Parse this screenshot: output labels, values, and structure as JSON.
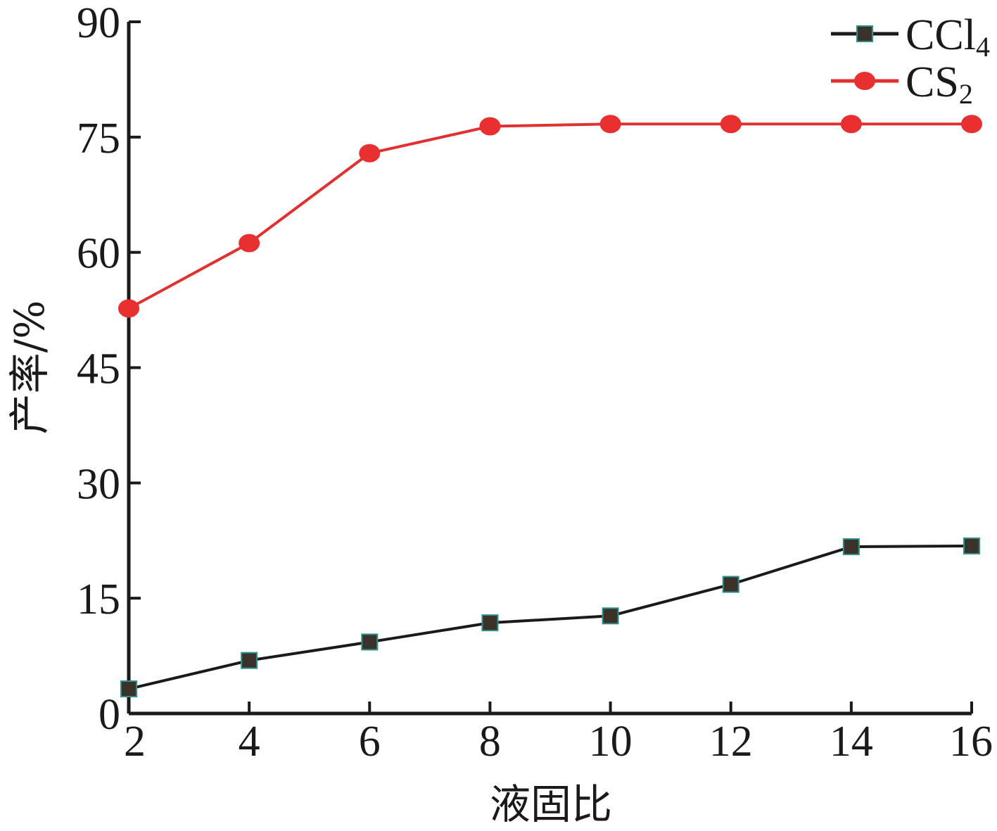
{
  "chart_data": {
    "type": "line",
    "xlabel": "液固比",
    "ylabel": "产率/%",
    "xlim": [
      2,
      16
    ],
    "ylim": [
      0,
      90
    ],
    "x": [
      2,
      4,
      6,
      8,
      10,
      12,
      14,
      16
    ],
    "xticks": [
      "2",
      "4",
      "6",
      "8",
      "10",
      "12",
      "14",
      "16"
    ],
    "yticks": [
      "0",
      "15",
      "30",
      "45",
      "60",
      "75",
      "90"
    ],
    "yticks_values": [
      0,
      15,
      30,
      45,
      60,
      75,
      90
    ],
    "grid": false,
    "legend": "top-right",
    "series": [
      {
        "name": "CCl4",
        "name_main": "CCl",
        "name_sub": "4",
        "marker": "square",
        "color": "#1a1a1a",
        "marker_fill": "#3a3128",
        "marker_edge": "#2f8f8f",
        "values": [
          3.2,
          6.9,
          9.3,
          11.8,
          12.7,
          16.8,
          21.7,
          21.8
        ]
      },
      {
        "name": "CS2",
        "name_main": "CS",
        "name_sub": "2",
        "marker": "circle",
        "color": "#e03030",
        "marker_fill": "#e83030",
        "marker_edge": "#e83030",
        "values": [
          52.7,
          61.2,
          72.9,
          76.4,
          76.7,
          76.7,
          76.7,
          76.7
        ]
      }
    ]
  }
}
